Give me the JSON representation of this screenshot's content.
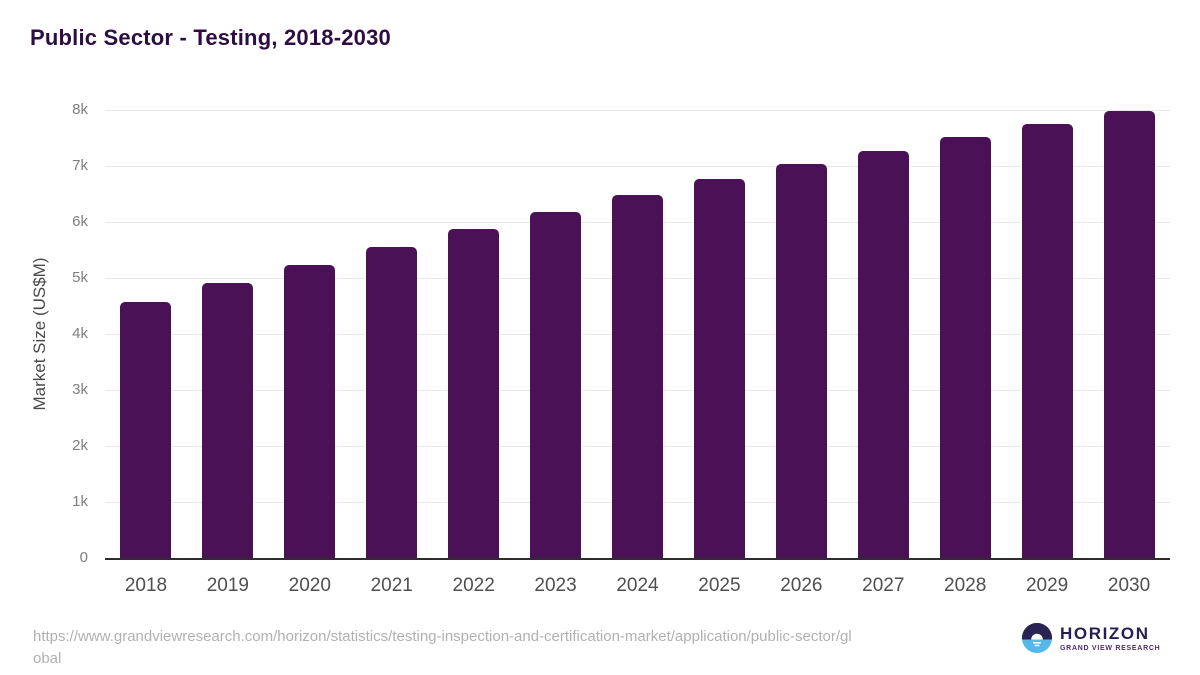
{
  "header": {
    "title": "Public Sector - Testing, 2018-2030"
  },
  "chart_data": {
    "type": "bar",
    "title": "Public Sector - Testing, 2018-2030",
    "categories": [
      "2018",
      "2019",
      "2020",
      "2021",
      "2022",
      "2023",
      "2024",
      "2025",
      "2026",
      "2027",
      "2028",
      "2029",
      "2030"
    ],
    "values": [
      4580,
      4905,
      5230,
      5550,
      5870,
      6185,
      6475,
      6760,
      7030,
      7270,
      7515,
      7745,
      7975
    ],
    "xlabel": "",
    "ylabel": "Market Size (US$M)",
    "ylim": [
      0,
      8000
    ],
    "ytick_labels": [
      "0",
      "1k",
      "2k",
      "3k",
      "4k",
      "5k",
      "6k",
      "7k",
      "8k"
    ],
    "grid": "horizontal-only",
    "legend": "none",
    "bar_color": "#4a1157"
  },
  "footer": {
    "source_url": "https://www.grandviewresearch.com/horizon/statistics/testing-inspection-and-certification-market/application/public-sector/global",
    "source_url_lines": [
      "https://www.grandviewresearch.com/horizon/statistics/testing-inspection-and-certification-market/application/public-sector/gl",
      "obal"
    ],
    "logo": {
      "title": "HORIZON",
      "subtitle": "GRAND VIEW RESEARCH"
    }
  },
  "colors": {
    "bar": "#4a1157",
    "title_text": "#2e0d43",
    "axis_line": "#2d2d2d",
    "gridline": "#e9e9e9",
    "logo_navy": "#2b2452",
    "logo_blue": "#56b8e8"
  }
}
